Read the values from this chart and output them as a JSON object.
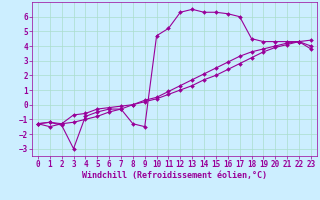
{
  "xlabel": "Windchill (Refroidissement éolien,°C)",
  "ylabel": "",
  "bg_color": "#cceeff",
  "grid_color": "#aaddcc",
  "line_color": "#990099",
  "xlim": [
    -0.5,
    23.5
  ],
  "ylim": [
    -3.5,
    7.0
  ],
  "xticks": [
    0,
    1,
    2,
    3,
    4,
    5,
    6,
    7,
    8,
    9,
    10,
    11,
    12,
    13,
    14,
    15,
    16,
    17,
    18,
    19,
    20,
    21,
    22,
    23
  ],
  "yticks": [
    -3,
    -2,
    -1,
    0,
    1,
    2,
    3,
    4,
    5,
    6
  ],
  "line1_x": [
    0,
    1,
    2,
    3,
    4,
    5,
    6,
    7,
    8,
    9,
    10,
    11,
    12,
    13,
    14,
    15,
    16,
    17,
    18,
    19,
    20,
    21,
    22,
    23
  ],
  "line1_y": [
    -1.3,
    -1.2,
    -1.3,
    -0.7,
    -0.6,
    -0.3,
    -0.2,
    -0.1,
    0.0,
    0.3,
    0.5,
    0.9,
    1.3,
    1.7,
    2.1,
    2.5,
    2.9,
    3.3,
    3.6,
    3.8,
    4.0,
    4.2,
    4.3,
    4.4
  ],
  "line2_x": [
    0,
    1,
    2,
    3,
    4,
    5,
    6,
    7,
    8,
    9,
    10,
    11,
    12,
    13,
    14,
    15,
    16,
    17,
    18,
    19,
    20,
    21,
    22,
    23
  ],
  "line2_y": [
    -1.3,
    -1.2,
    -1.4,
    -3.0,
    -0.8,
    -0.5,
    -0.3,
    -0.3,
    -1.3,
    -1.5,
    4.7,
    5.2,
    6.3,
    6.5,
    6.3,
    6.3,
    6.2,
    6.0,
    4.5,
    4.3,
    4.3,
    4.3,
    4.3,
    4.0
  ],
  "line3_x": [
    0,
    1,
    2,
    3,
    4,
    5,
    6,
    7,
    8,
    9,
    10,
    11,
    12,
    13,
    14,
    15,
    16,
    17,
    18,
    19,
    20,
    21,
    22,
    23
  ],
  "line3_y": [
    -1.3,
    -1.5,
    -1.3,
    -1.2,
    -1.0,
    -0.8,
    -0.5,
    -0.3,
    -0.0,
    0.2,
    0.4,
    0.7,
    1.0,
    1.3,
    1.7,
    2.0,
    2.4,
    2.8,
    3.2,
    3.6,
    3.9,
    4.1,
    4.3,
    3.8
  ],
  "font_family": "monospace",
  "tick_fontsize": 5.5,
  "label_fontsize": 6.0,
  "marker": "D",
  "markersize": 2.0,
  "linewidth": 0.8
}
